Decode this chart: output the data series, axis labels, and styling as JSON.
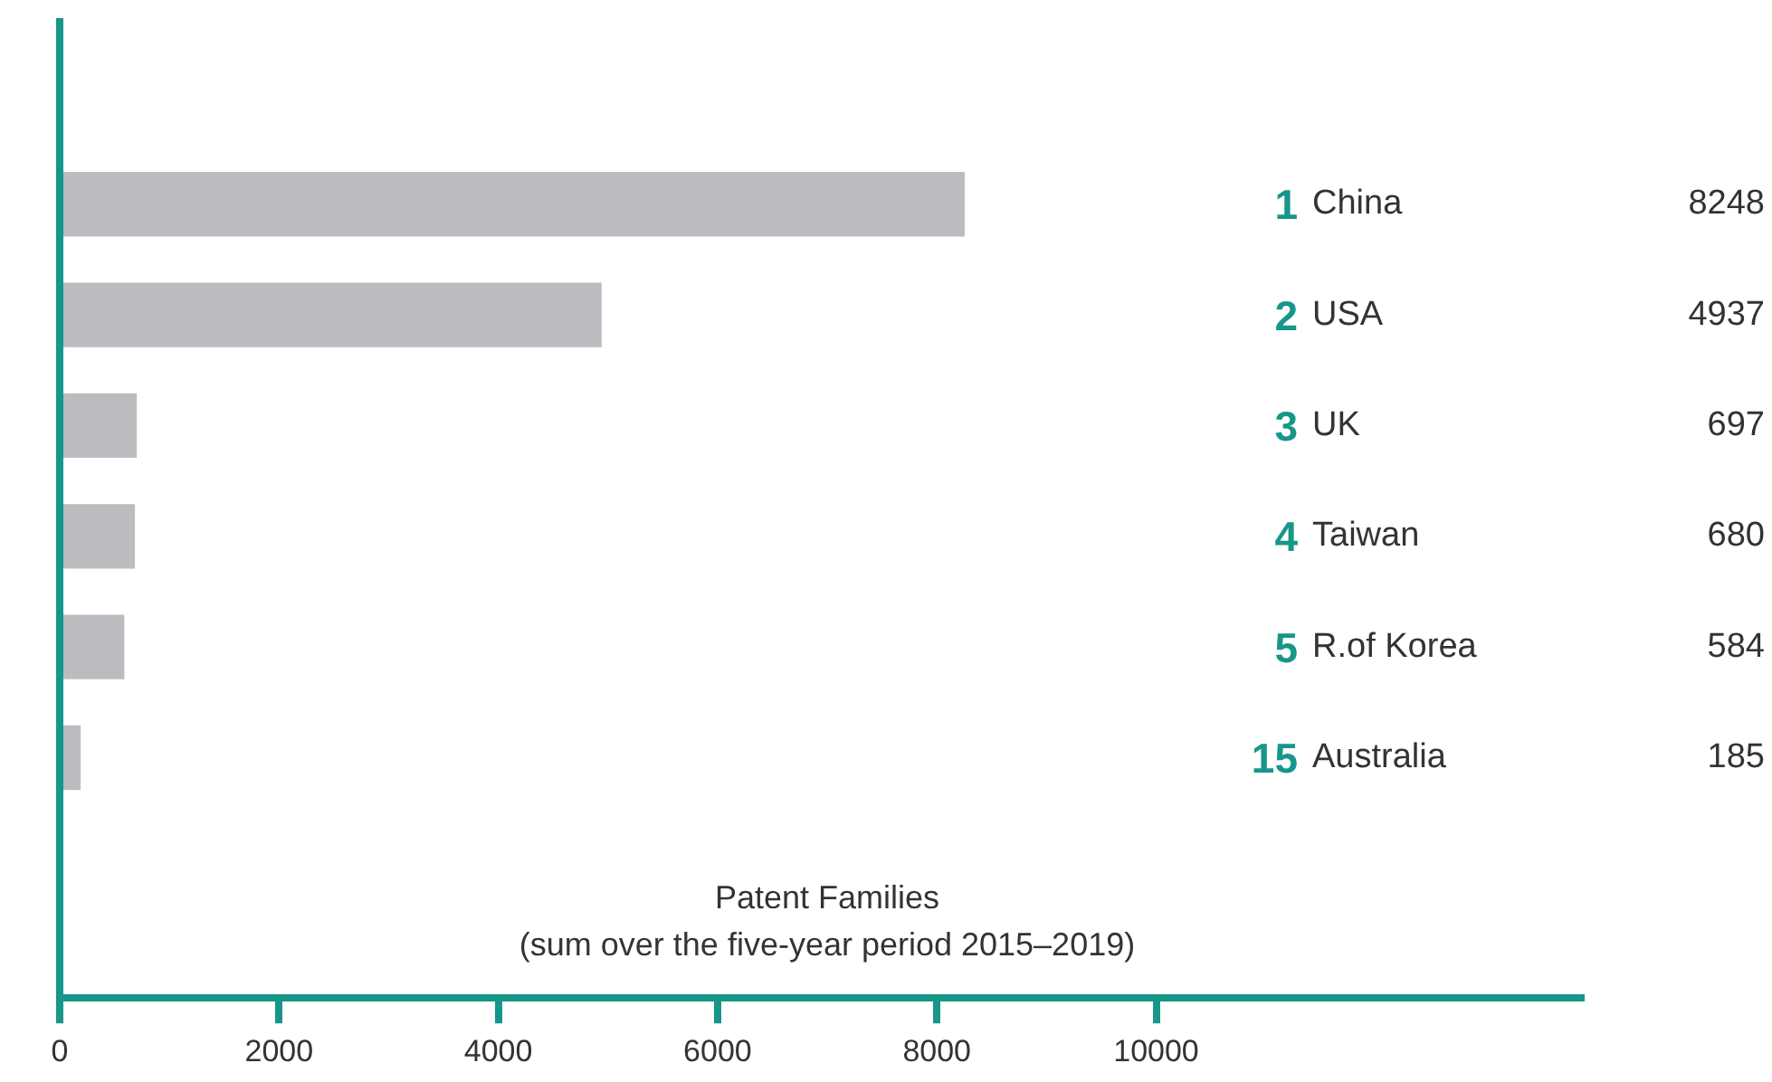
{
  "chart_data": {
    "type": "bar",
    "orientation": "horizontal",
    "categories": [
      "China",
      "USA",
      "UK",
      "Taiwan",
      "R.of Korea",
      "Australia"
    ],
    "values": [
      8248,
      4937,
      697,
      680,
      584,
      185
    ],
    "color": "#bbbcbf",
    "xlim": [
      0,
      13900
    ],
    "xticks": [
      0,
      2000,
      4000,
      6000,
      8000,
      10000
    ],
    "xlabel": "Patent Families\n(sum over the five-year period 2015–2019)",
    "data_labels": true,
    "grid": false,
    "legend": false,
    "annotations": [
      "1",
      "2",
      "3",
      "4",
      "5",
      "15"
    ]
  }
}
